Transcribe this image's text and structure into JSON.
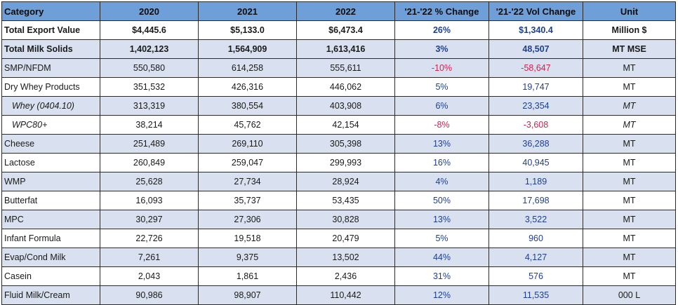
{
  "header": {
    "category": "Category",
    "y2020": "2020",
    "y2021": "2021",
    "y2022": "2022",
    "pct_change": "'21-'22 % Change",
    "vol_change": "'21-'22 Vol Change",
    "unit": "Unit"
  },
  "rows": [
    {
      "category": "Total Export Value",
      "y2020": "$4,445.6",
      "y2021": "$5,133.0",
      "y2022": "$6,473.4",
      "pct": "26%",
      "vol": "$1,340.4",
      "unit": "Million $",
      "bold": true,
      "shade": false,
      "indent": false,
      "negative": false
    },
    {
      "category": "Total Milk Solids",
      "y2020": "1,402,123",
      "y2021": "1,564,909",
      "y2022": "1,613,416",
      "pct": "3%",
      "vol": "48,507",
      "unit": "MT MSE",
      "bold": true,
      "shade": true,
      "indent": false,
      "negative": false
    },
    {
      "category": "SMP/NFDM",
      "y2020": "550,580",
      "y2021": "614,258",
      "y2022": "555,611",
      "pct": "-10%",
      "vol": "-58,647",
      "unit": "MT",
      "bold": false,
      "shade": true,
      "indent": false,
      "negative": true
    },
    {
      "category": "Dry Whey Products",
      "y2020": "351,532",
      "y2021": "426,316",
      "y2022": "446,062",
      "pct": "5%",
      "vol": "19,747",
      "unit": "MT",
      "bold": false,
      "shade": false,
      "indent": false,
      "negative": false
    },
    {
      "category": "Whey (0404.10)",
      "y2020": "313,319",
      "y2021": "380,554",
      "y2022": "403,908",
      "pct": "6%",
      "vol": "23,354",
      "unit": "MT",
      "bold": false,
      "shade": true,
      "indent": true,
      "negative": false
    },
    {
      "category": "WPC80+",
      "y2020": "38,214",
      "y2021": "45,762",
      "y2022": "42,154",
      "pct": "-8%",
      "vol": "-3,608",
      "unit": "MT",
      "bold": false,
      "shade": false,
      "indent": true,
      "negative": true
    },
    {
      "category": "Cheese",
      "y2020": "251,489",
      "y2021": "269,110",
      "y2022": "305,398",
      "pct": "13%",
      "vol": "36,288",
      "unit": "MT",
      "bold": false,
      "shade": true,
      "indent": false,
      "negative": false
    },
    {
      "category": "Lactose",
      "y2020": "260,849",
      "y2021": "259,047",
      "y2022": "299,993",
      "pct": "16%",
      "vol": "40,945",
      "unit": "MT",
      "bold": false,
      "shade": false,
      "indent": false,
      "negative": false
    },
    {
      "category": "WMP",
      "y2020": "25,628",
      "y2021": "27,734",
      "y2022": "28,924",
      "pct": "4%",
      "vol": "1,189",
      "unit": "MT",
      "bold": false,
      "shade": true,
      "indent": false,
      "negative": false
    },
    {
      "category": "Butterfat",
      "y2020": "16,093",
      "y2021": "35,737",
      "y2022": "53,435",
      "pct": "50%",
      "vol": "17,698",
      "unit": "MT",
      "bold": false,
      "shade": false,
      "indent": false,
      "negative": false
    },
    {
      "category": "MPC",
      "y2020": "30,297",
      "y2021": "27,306",
      "y2022": "30,828",
      "pct": "13%",
      "vol": "3,522",
      "unit": "MT",
      "bold": false,
      "shade": true,
      "indent": false,
      "negative": false
    },
    {
      "category": "Infant Formula",
      "y2020": "22,726",
      "y2021": "19,518",
      "y2022": "20,479",
      "pct": "5%",
      "vol": "960",
      "unit": "MT",
      "bold": false,
      "shade": false,
      "indent": false,
      "negative": false
    },
    {
      "category": "Evap/Cond Milk",
      "y2020": "7,261",
      "y2021": "9,375",
      "y2022": "13,502",
      "pct": "44%",
      "vol": "4,127",
      "unit": "MT",
      "bold": false,
      "shade": true,
      "indent": false,
      "negative": false
    },
    {
      "category": "Casein",
      "y2020": "2,043",
      "y2021": "1,861",
      "y2022": "2,436",
      "pct": "31%",
      "vol": "576",
      "unit": "MT",
      "bold": false,
      "shade": false,
      "indent": false,
      "negative": false
    },
    {
      "category": "Fluid Milk/Cream",
      "y2020": "90,986",
      "y2021": "98,907",
      "y2022": "110,442",
      "pct": "12%",
      "vol": "11,535",
      "unit": "000 L",
      "bold": false,
      "shade": true,
      "indent": false,
      "negative": false
    }
  ],
  "colors": {
    "header_bg": "#6f9fd8",
    "shade_bg": "#d9e1f0",
    "positive_text": "#1f3f8f",
    "negative_text": "#d32050"
  }
}
